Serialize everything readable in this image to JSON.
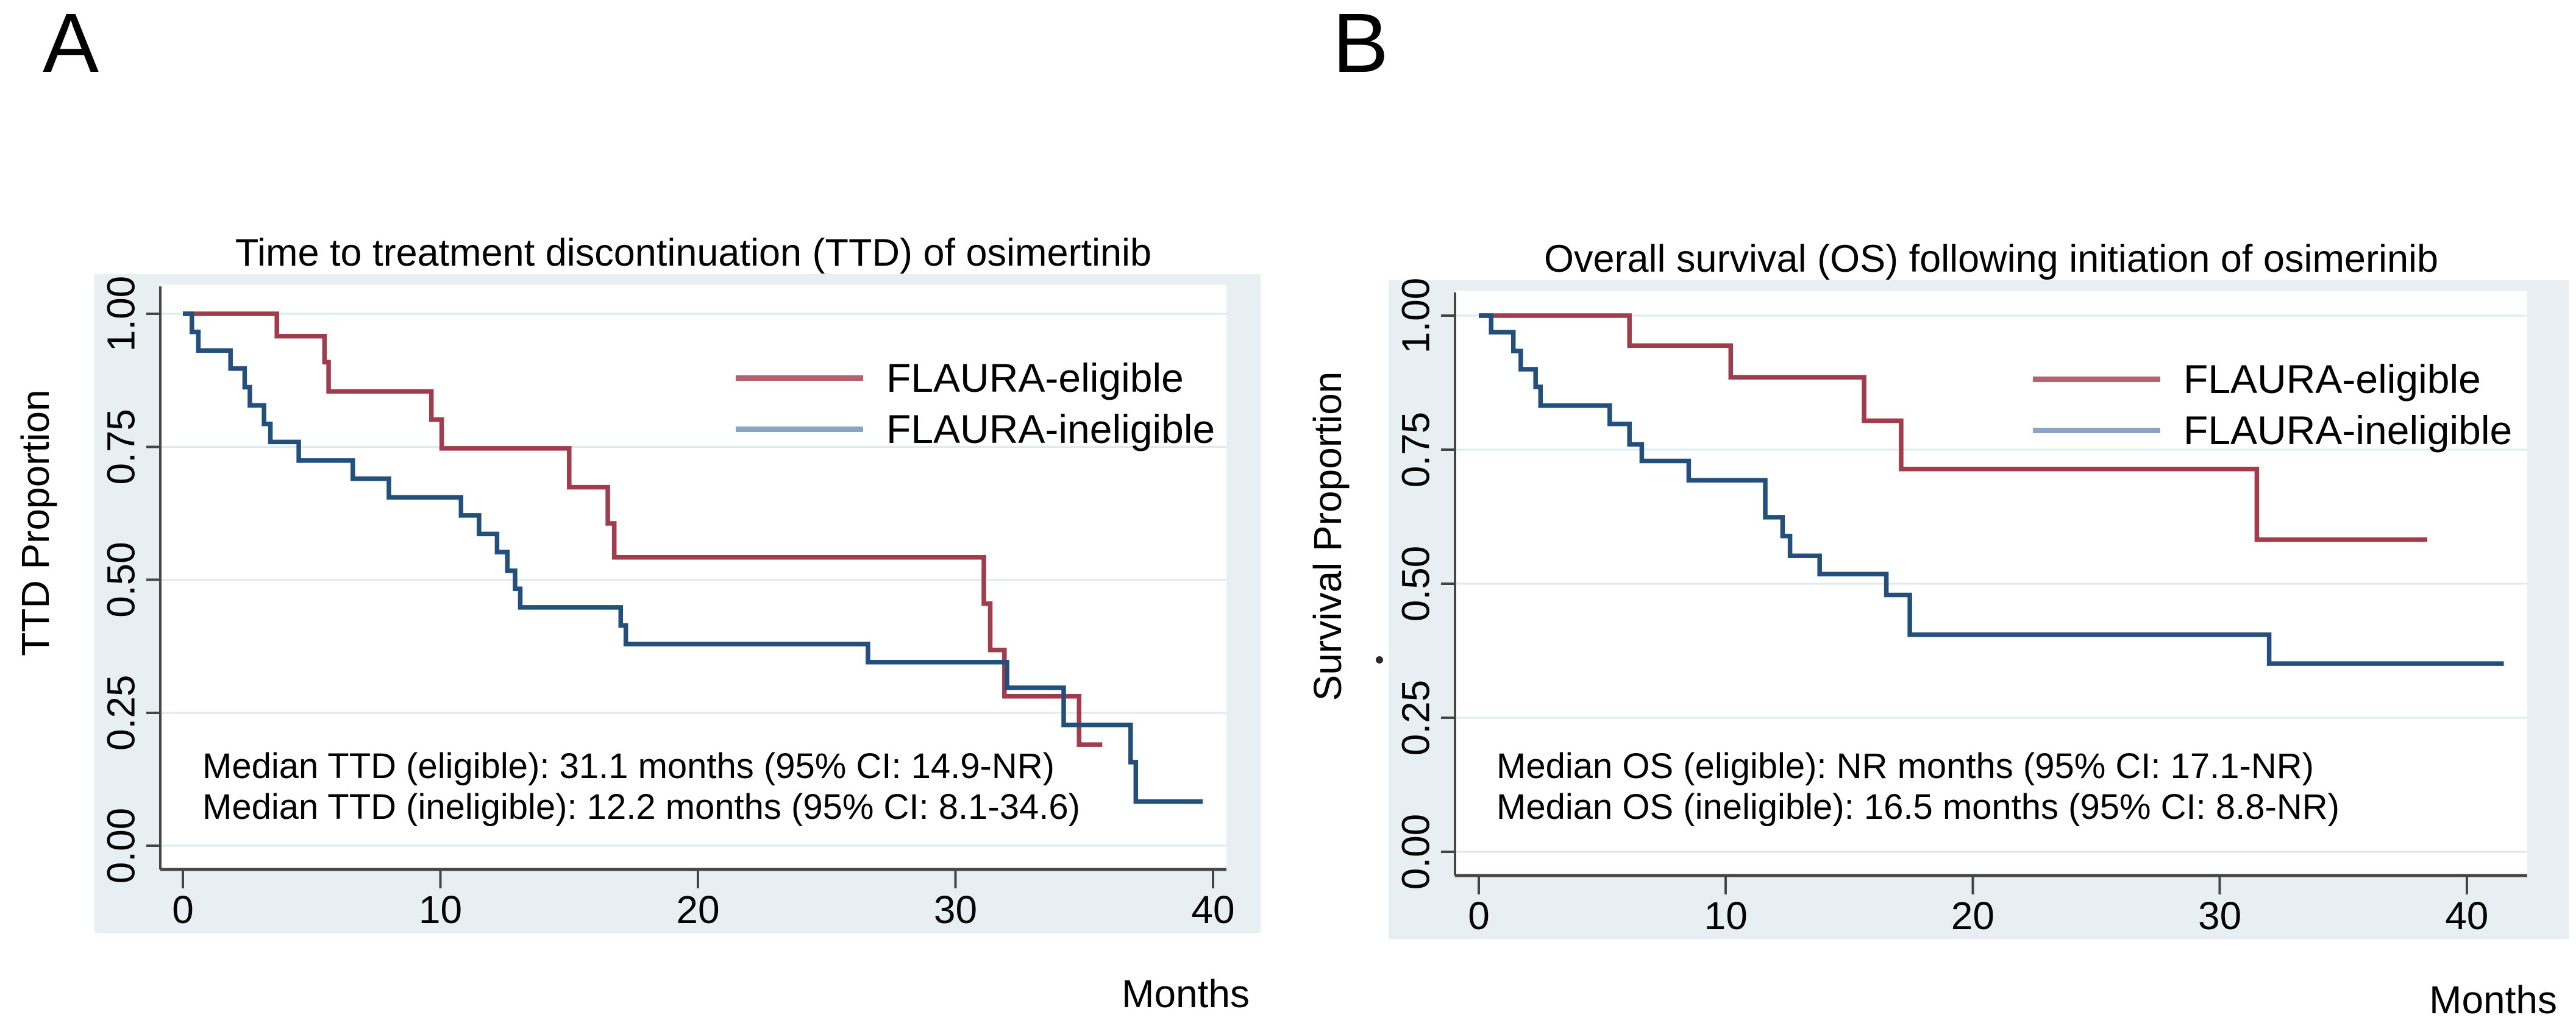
{
  "colors": {
    "background": "#ffffff",
    "panel_band": "#e8eff2",
    "plot_bg": "#ffffff",
    "gridline": "#dcebee",
    "axis": "#454545",
    "text": "#000000",
    "eligible_curve": "#a23b4c",
    "eligible_swatch": "#b2636e",
    "ineligible_curve": "#234f7d",
    "ineligible_swatch": "#8ba4c2"
  },
  "panels": [
    {
      "label": "A",
      "title": "Time to treatment discontinuation (TTD) of osimertinib",
      "y_axis_label": "TTD Proportion",
      "x_axis_label": "Months",
      "legend": [
        {
          "label": "FLAURA-eligible"
        },
        {
          "label": "FLAURA-ineligible"
        }
      ],
      "annotation_line1": "Median TTD (eligible): 31.1 months (95% CI: 14.9-NR)",
      "annotation_line2": "Median TTD (ineligible): 12.2 months (95% CI: 8.1-34.6)"
    },
    {
      "label": "B",
      "title": "Overall survival (OS) following initiation of osimerinib",
      "y_axis_label": "Survival Proportion",
      "x_axis_label": "Months",
      "legend": [
        {
          "label": "FLAURA-eligible"
        },
        {
          "label": "FLAURA-ineligible"
        }
      ],
      "annotation_line1": "Median OS (eligible): NR months (95% CI: 17.1-NR)",
      "annotation_line2": "Median OS (ineligible): 16.5 months (95% CI: 8.8-NR)"
    }
  ],
  "chart_data": [
    {
      "type": "line",
      "subtype": "kaplan-meier-step",
      "panel": "A",
      "title": "Time to treatment discontinuation (TTD) of osimertinib",
      "xlabel": "Months",
      "ylabel": "TTD Proportion",
      "xlim": [
        0,
        40.5
      ],
      "ylim": [
        0,
        1
      ],
      "x_ticks": [
        0,
        10,
        20,
        30,
        40
      ],
      "y_ticks": [
        "0.00",
        "0.25",
        "0.50",
        "0.75",
        "1.00"
      ],
      "grid": "horizontal",
      "legend_position": "top-right-inside",
      "series": [
        {
          "name": "FLAURA-eligible",
          "color_key": "eligible",
          "median": "31.1 months (95% CI: 14.9-NR)",
          "points": [
            [
              0,
              1.0
            ],
            [
              3.65,
              0.958
            ],
            [
              5.5,
              0.909
            ],
            [
              5.66,
              0.854
            ],
            [
              9.65,
              0.801
            ],
            [
              10.05,
              0.747
            ],
            [
              15.0,
              0.674
            ],
            [
              16.5,
              0.606
            ],
            [
              16.75,
              0.542
            ],
            [
              31.1,
              0.455
            ],
            [
              31.35,
              0.368
            ],
            [
              31.9,
              0.281
            ],
            [
              34.8,
              0.19
            ]
          ],
          "end_time": 35.7
        },
        {
          "name": "FLAURA-ineligible",
          "color_key": "ineligible",
          "median": "12.2 months (95% CI: 8.1-34.6)",
          "points": [
            [
              0,
              1.0
            ],
            [
              0.35,
              0.966
            ],
            [
              0.6,
              0.931
            ],
            [
              1.85,
              0.897
            ],
            [
              2.4,
              0.862
            ],
            [
              2.6,
              0.828
            ],
            [
              3.15,
              0.793
            ],
            [
              3.4,
              0.759
            ],
            [
              4.5,
              0.724
            ],
            [
              6.6,
              0.69
            ],
            [
              8.0,
              0.655
            ],
            [
              10.8,
              0.621
            ],
            [
              11.5,
              0.586
            ],
            [
              12.2,
              0.552
            ],
            [
              12.6,
              0.517
            ],
            [
              12.9,
              0.483
            ],
            [
              13.1,
              0.448
            ],
            [
              17.0,
              0.414
            ],
            [
              17.2,
              0.379
            ],
            [
              26.6,
              0.345
            ],
            [
              32.0,
              0.297
            ],
            [
              34.2,
              0.227
            ],
            [
              36.8,
              0.157
            ],
            [
              37.0,
              0.083
            ]
          ],
          "end_time": 39.6
        }
      ]
    },
    {
      "type": "line",
      "subtype": "kaplan-meier-step",
      "panel": "B",
      "title": "Overall survival (OS) following initiation of osimerinib",
      "xlabel": "Months",
      "ylabel": "Survival Proportion",
      "xlim": [
        0,
        42.5
      ],
      "ylim": [
        0,
        1
      ],
      "x_ticks": [
        0,
        10,
        20,
        30,
        40
      ],
      "y_ticks": [
        "0.00",
        "0.25",
        "0.50",
        "0.75",
        "1.00"
      ],
      "grid": "horizontal",
      "legend_position": "top-right-inside",
      "series": [
        {
          "name": "FLAURA-eligible",
          "color_key": "eligible",
          "median": "NR months (95% CI: 17.1-NR)",
          "points": [
            [
              0,
              1.0
            ],
            [
              6.1,
              0.944
            ],
            [
              10.2,
              0.885
            ],
            [
              15.6,
              0.804
            ],
            [
              17.1,
              0.714
            ],
            [
              31.5,
              0.582
            ]
          ],
          "end_time": 38.4
        },
        {
          "name": "FLAURA-ineligible",
          "color_key": "ineligible",
          "median": "16.5 months (95% CI: 8.8-NR)",
          "points": [
            [
              0,
              1.0
            ],
            [
              0.5,
              0.969
            ],
            [
              1.4,
              0.934
            ],
            [
              1.7,
              0.9
            ],
            [
              2.3,
              0.867
            ],
            [
              2.5,
              0.832
            ],
            [
              5.3,
              0.798
            ],
            [
              6.1,
              0.76
            ],
            [
              6.6,
              0.729
            ],
            [
              8.5,
              0.693
            ],
            [
              11.6,
              0.624
            ],
            [
              12.3,
              0.589
            ],
            [
              12.6,
              0.552
            ],
            [
              13.8,
              0.518
            ],
            [
              16.5,
              0.479
            ],
            [
              17.45,
              0.405
            ],
            [
              32.0,
              0.351
            ]
          ],
          "end_time": 41.5
        }
      ]
    }
  ]
}
